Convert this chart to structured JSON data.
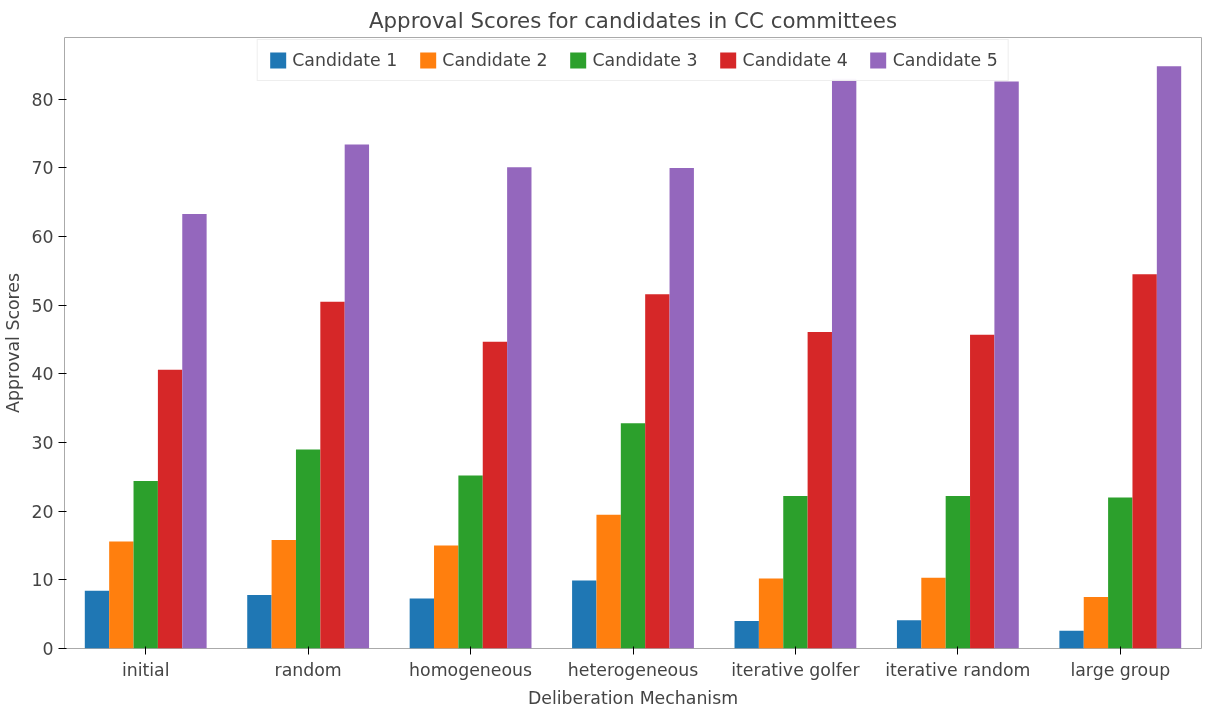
{
  "chart_data": {
    "type": "bar",
    "title": "Approval Scores for candidates in CC committees",
    "xlabel": "Deliberation Mechanism",
    "ylabel": "Approval Scores",
    "categories": [
      "initial",
      "random",
      "homogeneous",
      "heterogeneous",
      "iterative golfer",
      "iterative random",
      "large group"
    ],
    "series": [
      {
        "name": "Candidate 1",
        "color": "#1f77b4",
        "values": [
          8.4,
          7.8,
          7.3,
          9.9,
          4.0,
          4.1,
          2.6
        ]
      },
      {
        "name": "Candidate 2",
        "color": "#ff7f0e",
        "values": [
          15.6,
          15.8,
          15.0,
          19.5,
          10.2,
          10.3,
          7.5
        ]
      },
      {
        "name": "Candidate 3",
        "color": "#2ca02c",
        "values": [
          24.4,
          29.0,
          25.2,
          32.8,
          22.2,
          22.2,
          22.0
        ]
      },
      {
        "name": "Candidate 4",
        "color": "#d62728",
        "values": [
          40.6,
          50.5,
          44.7,
          51.6,
          46.1,
          45.7,
          54.5
        ]
      },
      {
        "name": "Candidate 5",
        "color": "#9467bd",
        "values": [
          63.3,
          73.4,
          70.1,
          70.0,
          83.0,
          82.6,
          84.8
        ]
      }
    ],
    "ylim": [
      0,
      89
    ],
    "yticks": [
      0,
      10,
      20,
      30,
      40,
      50,
      60,
      70,
      80
    ],
    "grid": false,
    "legend": "top"
  }
}
